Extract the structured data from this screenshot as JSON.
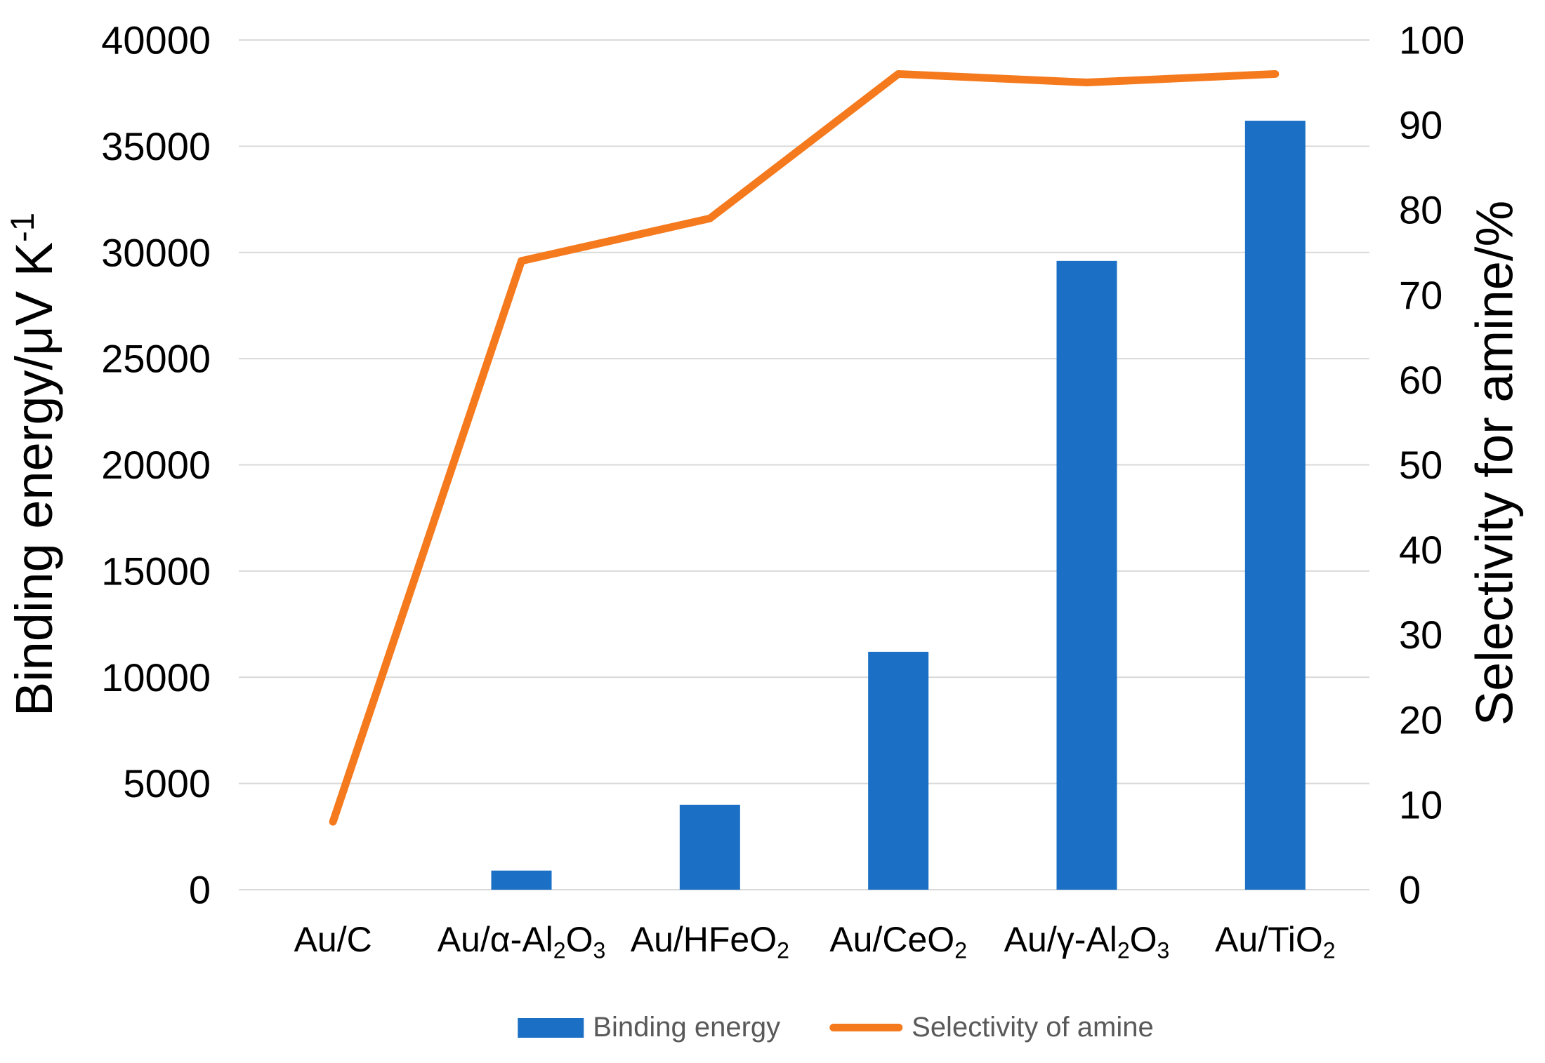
{
  "axes": {
    "left_title": "Binding energy/μV K-1",
    "left_title_parts": [
      {
        "t": "Binding energy/μV K"
      },
      {
        "t": "-1",
        "sup": true
      }
    ],
    "right_title": "Selectivity for amine/%",
    "right_title_parts": [
      {
        "t": "Selectivity for amine/%"
      }
    ]
  },
  "legend": {
    "items": [
      {
        "label": "Binding energy",
        "swatch": "bar",
        "color": "#1B70C5"
      },
      {
        "label": "Selectivity of amine",
        "swatch": "line",
        "color": "#F5791D"
      }
    ]
  },
  "chart_data": {
    "type": "combo-bar-line",
    "categories": [
      "Au/C",
      "Au/α-Al2O3",
      "Au/HFeO2",
      "Au/CeO2",
      "Au/γ-Al2O3",
      "Au/TiO2"
    ],
    "category_display_parts": [
      [
        {
          "t": "Au/C"
        }
      ],
      [
        {
          "t": "Au/α-Al"
        },
        {
          "t": "2",
          "sub": true
        },
        {
          "t": "O"
        },
        {
          "t": "3",
          "sub": true
        }
      ],
      [
        {
          "t": "Au/HFeO"
        },
        {
          "t": "2",
          "sub": true
        }
      ],
      [
        {
          "t": "Au/CeO"
        },
        {
          "t": "2",
          "sub": true
        }
      ],
      [
        {
          "t": "Au/γ-Al"
        },
        {
          "t": "2",
          "sub": true
        },
        {
          "t": "O"
        },
        {
          "t": "3",
          "sub": true
        }
      ],
      [
        {
          "t": "Au/TiO"
        },
        {
          "t": "2",
          "sub": true
        }
      ]
    ],
    "series": [
      {
        "name": "Binding energy",
        "type": "bar",
        "axis": "left",
        "color": "#1B70C5",
        "values": [
          0,
          900,
          4000,
          11200,
          29600,
          36200
        ]
      },
      {
        "name": "Selectivity of amine",
        "type": "line",
        "axis": "right",
        "color": "#F5791D",
        "values": [
          8,
          74,
          79,
          96,
          95,
          96
        ]
      }
    ],
    "left_axis": {
      "title": "Binding energy/μV K-1",
      "min": 0,
      "max": 40000,
      "step": 5000,
      "tick_labels": [
        "0",
        "5000",
        "10000",
        "15000",
        "20000",
        "25000",
        "30000",
        "35000",
        "40000"
      ]
    },
    "right_axis": {
      "title": "Selectivity for amine/%",
      "min": 0,
      "max": 100,
      "step": 10,
      "tick_labels": [
        "0",
        "10",
        "20",
        "30",
        "40",
        "50",
        "60",
        "70",
        "80",
        "90",
        "100"
      ]
    },
    "grid": true,
    "legend_position": "bottom"
  },
  "colors": {
    "bar": "#1B70C5",
    "line": "#F5791D",
    "gridline": "#D9D9D9",
    "tick_text": "#000000",
    "legend_text": "#595959",
    "background": "#FFFFFF"
  }
}
